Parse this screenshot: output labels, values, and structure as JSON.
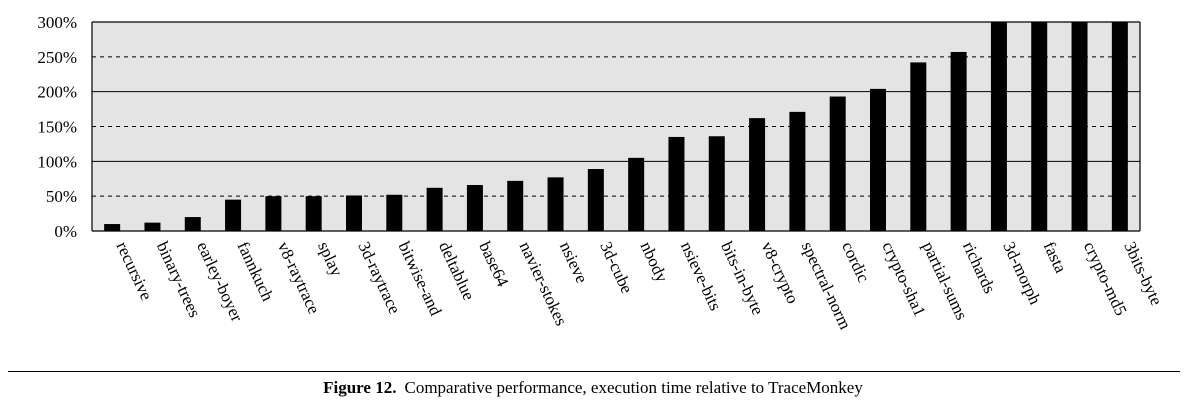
{
  "chart_data": {
    "type": "bar",
    "categories": [
      "recursive",
      "binary-trees",
      "earley-boyer",
      "fannkuch",
      "v8-raytrace",
      "splay",
      "3d-raytrace",
      "bitwise-and",
      "deltablue",
      "base64",
      "navier-stokes",
      "nsieve",
      "3d-cube",
      "nbody",
      "nsieve-bits",
      "bits-in-byte",
      "v8-crypto",
      "spectral-norm",
      "cordic",
      "crypto-sha1",
      "partial-sums",
      "richards",
      "3d-morph",
      "fasta",
      "crypto-md5",
      "3bits-byte"
    ],
    "values": [
      10,
      12,
      20,
      45,
      50,
      50,
      51,
      52,
      62,
      66,
      72,
      77,
      89,
      105,
      135,
      136,
      162,
      171,
      193,
      204,
      242,
      257,
      300,
      300,
      300,
      300
    ],
    "ylim": [
      0,
      300
    ],
    "yticks": [
      0,
      50,
      100,
      150,
      200,
      250,
      300
    ],
    "ytick_labels": [
      "0%",
      "50%",
      "100%",
      "150%",
      "200%",
      "250%",
      "300%"
    ],
    "grid": {
      "solid_at": [
        100,
        200
      ],
      "dashed_at": [
        50,
        150,
        250
      ]
    },
    "colors": {
      "bar": "#000000",
      "plot_background": "#e4e4e4",
      "grid": "#000000"
    }
  },
  "caption": {
    "label": "Figure 12.",
    "text": "Comparative performance, execution time relative to TraceMonkey"
  }
}
